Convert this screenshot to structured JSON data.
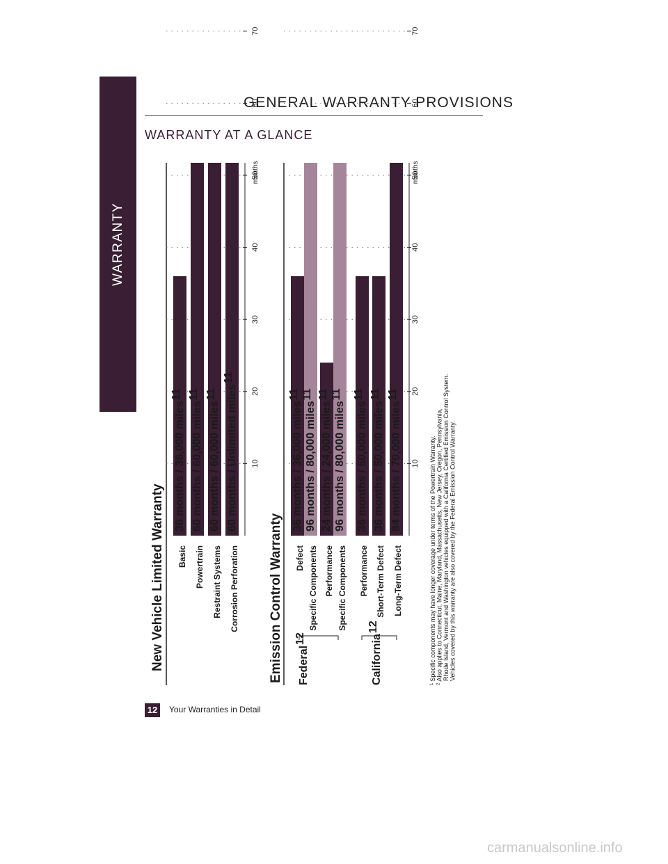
{
  "side_tab": {
    "label": "WARRANTY"
  },
  "header": {
    "section_title": "GENERAL WARRANTY PROVISIONS",
    "page_heading": "WARRANTY AT A GLANCE"
  },
  "colors": {
    "brand": "#3a1e33",
    "bar_dark": "#3a1e33",
    "bar_light": "#a48599"
  },
  "chart_data": [
    {
      "type": "bar",
      "title": "New Vehicle Limited Warranty",
      "xlabel": "",
      "unit_label": "months",
      "ticks": [
        10,
        20,
        30,
        40,
        50,
        60,
        70,
        80
      ],
      "grid": true,
      "bars": [
        {
          "category": "Basic",
          "value": 36,
          "label": "36 months  /  36,000 miles",
          "sup": "",
          "tone": "dark"
        },
        {
          "category": "Powertrain",
          "value": 60,
          "label": "60 months  /  60,000 miles",
          "sup": "",
          "tone": "dark"
        },
        {
          "category": "Restraint Systems",
          "value": 60,
          "label": "60 months  /  60,000 miles",
          "sup": "",
          "tone": "dark"
        },
        {
          "category": "Corrosion Perforation",
          "value": 60,
          "label": "60 months  /  Unlimited miles",
          "sup": "",
          "tone": "dark"
        }
      ]
    },
    {
      "type": "bar",
      "title": "Emission Control Warranty",
      "xlabel": "",
      "unit_label": "months",
      "ticks": [
        10,
        20,
        30,
        40,
        50,
        60,
        70,
        80
      ],
      "grid": true,
      "groups": [
        {
          "name": "Federal",
          "sup": ""
        },
        {
          "name": "California",
          "sup": "2"
        }
      ],
      "bars": [
        {
          "category": "Defect",
          "value": 36,
          "label": "36 months  /  36,000 miles",
          "sup": "1",
          "tone": "dark",
          "group": "Federal"
        },
        {
          "category": "Specific Components",
          "value": 96,
          "label": "96 months  /  80,000 miles",
          "sup": "",
          "tone": "light",
          "group": "Federal"
        },
        {
          "category": "Performance",
          "value": 24,
          "label": "24 months  /  24,000 miles",
          "sup": "",
          "tone": "dark",
          "group": "Federal"
        },
        {
          "category": "Specific Components",
          "value": 96,
          "label": "96 months  /  80,000 miles",
          "sup": "",
          "tone": "light",
          "group": "Federal"
        },
        {
          "category": "Performance",
          "value": 36,
          "label": "36 months  /  50,000 miles",
          "sup": "",
          "tone": "dark",
          "group": "California"
        },
        {
          "category": "Short-Term Defect",
          "value": 36,
          "label": "36 months  /  50,000 miles",
          "sup": "1",
          "tone": "dark",
          "group": "California"
        },
        {
          "category": "Long-Term Defect",
          "value": 84,
          "label": "84 months  /  70,000 miles",
          "sup": "",
          "tone": "dark",
          "group": "California"
        }
      ]
    }
  ],
  "footnotes": [
    {
      "mark": "1",
      "lines": [
        "Specific components may have longer coverage under terms of the Powertrain Warranty."
      ]
    },
    {
      "mark": "2",
      "lines": [
        "Also applies to Connecticut, Maine, Maryland, Massachusetts, New Jersey, Oregon, Pennsylvania,",
        "Rhode Island, Vermont and Washington vehicles equipped with a California Certified Emission Control System.",
        "Vehicles covered by this warranty are also covered by the Federal Emission Control Warranty."
      ]
    }
  ],
  "footer": {
    "page_number": "12",
    "text": "Your Warranties in Detail"
  },
  "watermark": "carmanualsonline.info"
}
